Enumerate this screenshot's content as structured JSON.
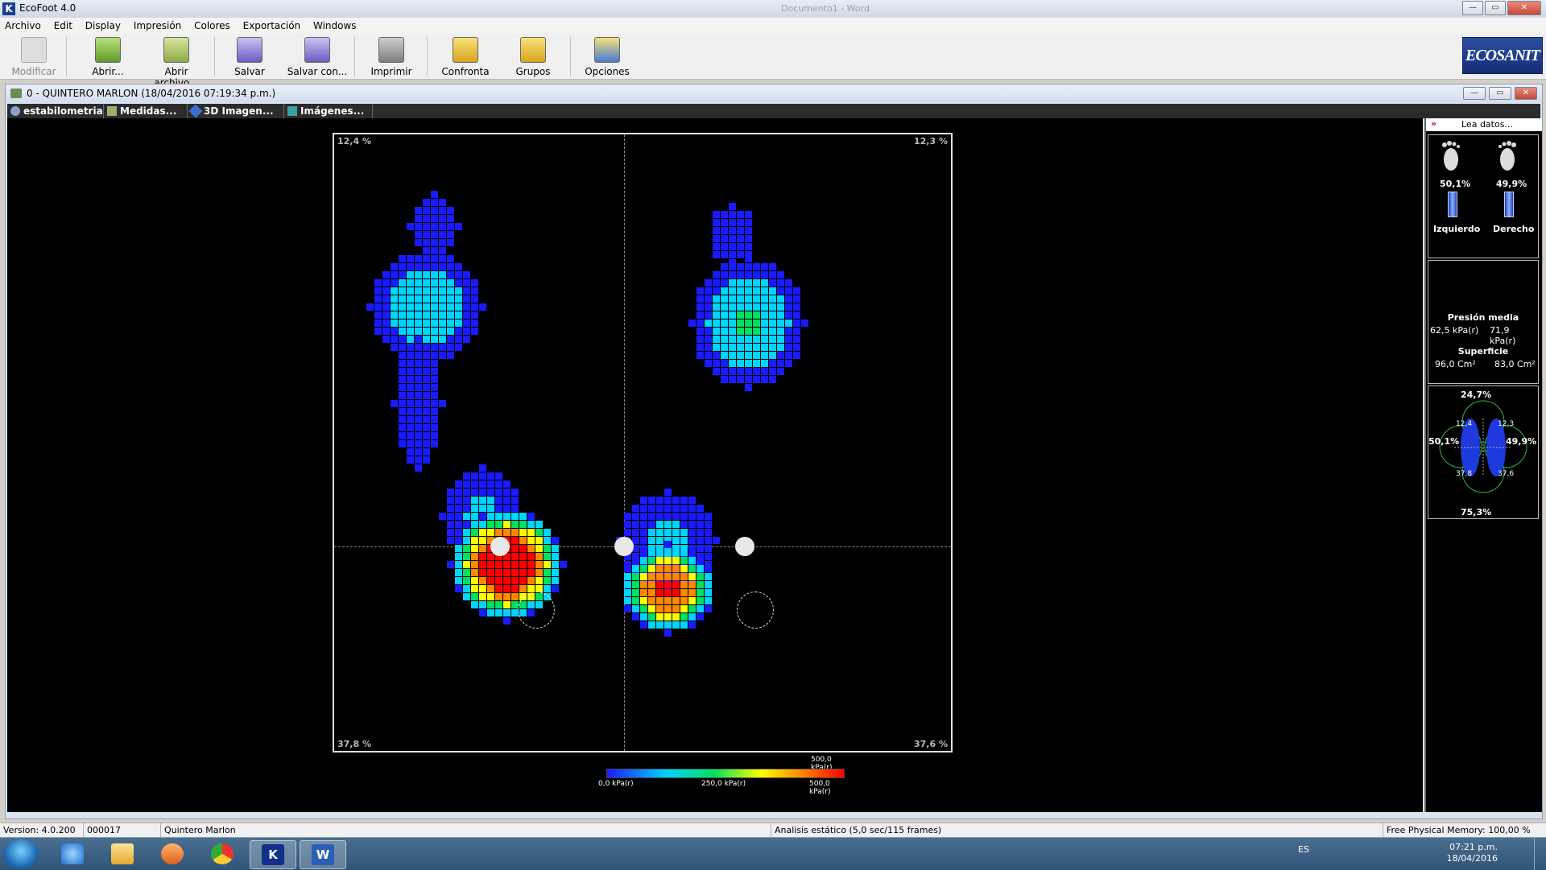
{
  "window": {
    "title": "EcoFoot 4.0",
    "ghost_title": "Documento1 - Word",
    "min_label": "—",
    "max_label": "▭",
    "close_label": "✕"
  },
  "menu": [
    "Archivo",
    "Edit",
    "Display",
    "Impresión",
    "Colores",
    "Exportación",
    "Windows"
  ],
  "toolbar": {
    "modificar": "Modificar",
    "abrir": "Abrir...",
    "abrir_archivo": "Abrir archivo...",
    "salvar": "Salvar",
    "salvar_con": "Salvar con...",
    "imprimir": "Imprimir",
    "confronta": "Confronta",
    "grupos": "Grupos",
    "opciones": "Opciones"
  },
  "logo": "ECOSANIT",
  "document": {
    "title": "0 -  QUINTERO MARLON  (18/04/2016 07:19:34 p.m.)",
    "tabs": [
      "estabilometria",
      "Medidas...",
      "3D Imagen...",
      "Imágenes..."
    ]
  },
  "plot": {
    "top_left": "12,4 %",
    "top_right": "12,3 %",
    "bottom_left": "37,8 %",
    "bottom_right": "37,6 %"
  },
  "legend": {
    "min": "0,0 kPa(r)",
    "mid": "250,0 kPa(r)",
    "max": "500,0 kPa(r)",
    "max_top": "500,0 kPa(r)",
    "colors": [
      "#1a1aff",
      "#00d4ff",
      "#00e060",
      "#ffff00",
      "#ff8800",
      "#ff0000"
    ]
  },
  "side": {
    "header": "Lea datos...",
    "arrows": "»",
    "left_pct": "50,1%",
    "right_pct": "49,9%",
    "left_label": "Izquierdo",
    "right_label": "Derecho",
    "presion_title": "Presión media",
    "presion_left": "62,5 kPa(r)",
    "presion_right": "71,9 kPa(r)",
    "superficie_title": "Superficie",
    "superficie_left": "96,0 Cm²",
    "superficie_right": "83,0 Cm²",
    "balance_top": "24,7%",
    "balance_left": "50,1%",
    "balance_right": "49,9%",
    "balance_bottom": "75,3%",
    "q_tl": "12,4",
    "q_tr": "12,3",
    "q_bl": "37,8",
    "q_br": "37,6"
  },
  "status": {
    "version": "Version: 4.0.200",
    "code": "000017",
    "patient": "Quintero Marlon",
    "analysis": "Analisis estático (5,0 sec/115 frames)",
    "memory": "Free Physical Memory: 100,00 %"
  },
  "taskbar": {
    "word_label": "W",
    "app_label": "K",
    "lang": "ES",
    "time": "07:21 p.m.",
    "date": "18/04/2016"
  }
}
